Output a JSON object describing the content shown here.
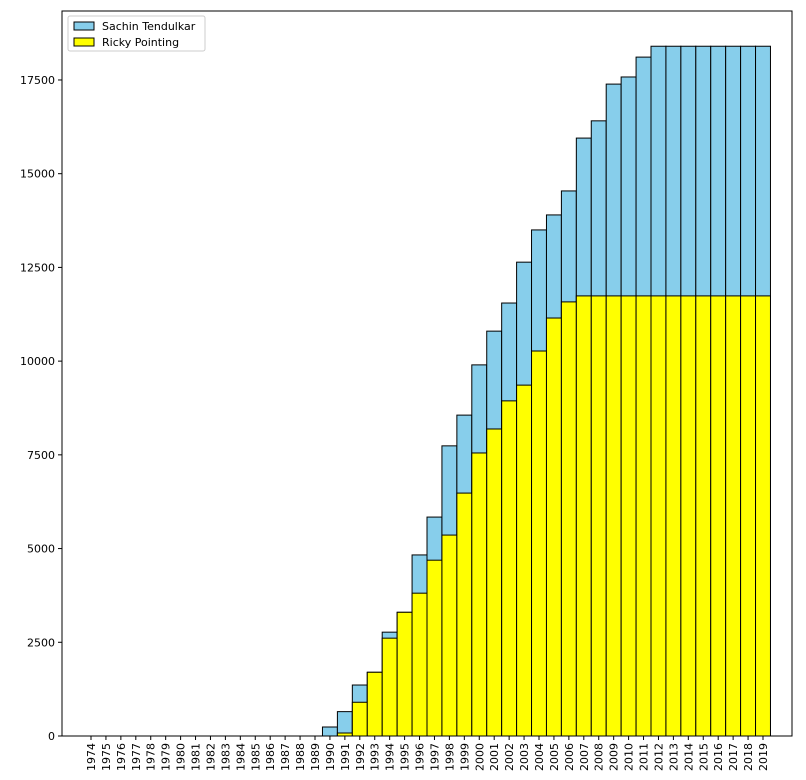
{
  "chart_data": {
    "type": "bar",
    "overlap": true,
    "categories": [
      "1974",
      "1975",
      "1976",
      "1977",
      "1978",
      "1979",
      "1980",
      "1981",
      "1982",
      "1983",
      "1984",
      "1985",
      "1986",
      "1987",
      "1988",
      "1989",
      "1990",
      "1991",
      "1992",
      "1993",
      "1994",
      "1995",
      "1996",
      "1997",
      "1998",
      "1999",
      "2000",
      "2001",
      "2002",
      "2003",
      "2004",
      "2005",
      "2006",
      "2007",
      "2008",
      "2009",
      "2010",
      "2011",
      "2012",
      "2013",
      "2014",
      "2015",
      "2016",
      "2017",
      "2018",
      "2019"
    ],
    "series": [
      {
        "name": "Sachin Tendulkar",
        "color": "#87ceeb",
        "values": [
          0,
          0,
          0,
          0,
          0,
          0,
          0,
          0,
          0,
          0,
          0,
          0,
          0,
          0,
          0,
          0,
          240,
          650,
          1360,
          1700,
          2770,
          3300,
          4830,
          5840,
          7740,
          8560,
          9900,
          10800,
          11550,
          12640,
          13500,
          13900,
          14540,
          15950,
          16410,
          17390,
          17580,
          18110,
          18400,
          18400,
          18400,
          18400,
          18400,
          18400,
          18400,
          18400
        ]
      },
      {
        "name": "Ricky Pointing",
        "color": "#ffff00",
        "values": [
          0,
          0,
          0,
          0,
          0,
          0,
          0,
          0,
          0,
          0,
          0,
          0,
          0,
          0,
          0,
          0,
          0,
          80,
          900,
          1700,
          2610,
          3300,
          3810,
          4690,
          5360,
          6480,
          7550,
          8190,
          8940,
          9360,
          10270,
          11150,
          11580,
          11740,
          11740,
          11740,
          11740,
          11740,
          11740,
          11740,
          11740,
          11740,
          11740,
          11740,
          11740,
          11740
        ]
      }
    ],
    "ylim": [
      0,
      19340
    ],
    "yticks": [
      0,
      2500,
      5000,
      7500,
      10000,
      12500,
      15000,
      17500
    ],
    "legend": "upper left",
    "edge_color": "#000000"
  }
}
